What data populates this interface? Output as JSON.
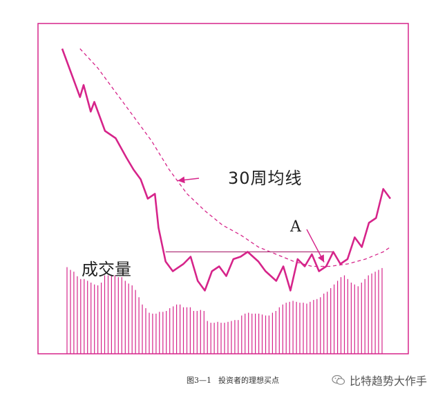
{
  "chart_data": {
    "type": "line",
    "title": "",
    "annotations": {
      "moving_average_label": "30周均线",
      "breakout_point_label": "A",
      "volume_label": "成交量"
    },
    "colors": {
      "accent": "#d6248a",
      "frame": "#d6248a",
      "resistance": "#b0347a",
      "text": "#222222"
    },
    "price": [
      [
        0,
        92
      ],
      [
        3,
        80
      ],
      [
        5,
        72
      ],
      [
        6,
        77
      ],
      [
        8,
        66
      ],
      [
        9,
        70
      ],
      [
        12,
        58
      ],
      [
        15,
        55
      ],
      [
        18,
        47
      ],
      [
        20,
        42
      ],
      [
        22,
        38
      ],
      [
        24,
        30
      ],
      [
        26,
        32
      ],
      [
        27,
        18
      ],
      [
        29,
        4
      ],
      [
        31,
        0
      ],
      [
        34,
        3
      ],
      [
        36,
        6
      ],
      [
        38,
        -4
      ],
      [
        40,
        -8
      ],
      [
        42,
        0
      ],
      [
        44,
        2
      ],
      [
        46,
        -2
      ],
      [
        48,
        5
      ],
      [
        50,
        6
      ],
      [
        52,
        8
      ],
      [
        55,
        4
      ],
      [
        57,
        0
      ],
      [
        60,
        -4
      ],
      [
        62,
        2
      ],
      [
        64,
        -8
      ],
      [
        66,
        5
      ],
      [
        68,
        2
      ],
      [
        70,
        7
      ],
      [
        72,
        0
      ],
      [
        74,
        2
      ],
      [
        76,
        8
      ],
      [
        78,
        3
      ],
      [
        80,
        5
      ],
      [
        82,
        14
      ],
      [
        84,
        10
      ],
      [
        86,
        20
      ],
      [
        88,
        22
      ],
      [
        90,
        34
      ],
      [
        92,
        30
      ]
    ],
    "moving_average": [
      [
        5,
        92
      ],
      [
        10,
        84
      ],
      [
        15,
        74
      ],
      [
        20,
        64
      ],
      [
        25,
        54
      ],
      [
        30,
        42
      ],
      [
        35,
        32
      ],
      [
        40,
        25
      ],
      [
        45,
        19
      ],
      [
        50,
        15
      ],
      [
        55,
        10
      ],
      [
        60,
        7
      ],
      [
        65,
        4
      ],
      [
        70,
        2
      ],
      [
        75,
        2
      ],
      [
        80,
        3
      ],
      [
        85,
        5
      ],
      [
        90,
        8
      ],
      [
        92,
        10
      ]
    ],
    "resistance_level": {
      "y": 8,
      "x_start": 29,
      "x_end": 76
    },
    "breakout_index": 74,
    "volume": [
      95,
      92,
      90,
      85,
      82,
      82,
      80,
      78,
      76,
      75,
      78,
      86,
      86,
      86,
      86,
      84,
      84,
      80,
      77,
      75,
      70,
      62,
      54,
      50,
      45,
      44,
      44,
      46,
      46,
      47,
      50,
      52,
      54,
      54,
      51,
      51,
      51,
      47,
      47,
      48,
      47,
      36,
      34,
      34,
      35,
      34,
      34,
      35,
      36,
      37,
      37,
      42,
      44,
      45,
      44,
      44,
      44,
      43,
      42,
      42,
      45,
      47,
      51,
      54,
      56,
      57,
      58,
      57,
      56,
      56,
      55,
      57,
      59,
      60,
      62,
      66,
      68,
      72,
      76,
      80,
      84,
      86,
      82,
      78,
      76,
      74,
      78,
      82,
      86,
      88,
      90,
      92,
      94
    ],
    "xlim": [
      0,
      92
    ],
    "price_ylim": [
      -15,
      95
    ],
    "volume_ylim": [
      0,
      100
    ],
    "grid": false,
    "legend": "none"
  },
  "caption": {
    "figure_number": "图3—1",
    "text": "投资者的理想买点"
  },
  "watermark": {
    "text": "比特趋势大作手",
    "icon": "wechat-icon"
  }
}
